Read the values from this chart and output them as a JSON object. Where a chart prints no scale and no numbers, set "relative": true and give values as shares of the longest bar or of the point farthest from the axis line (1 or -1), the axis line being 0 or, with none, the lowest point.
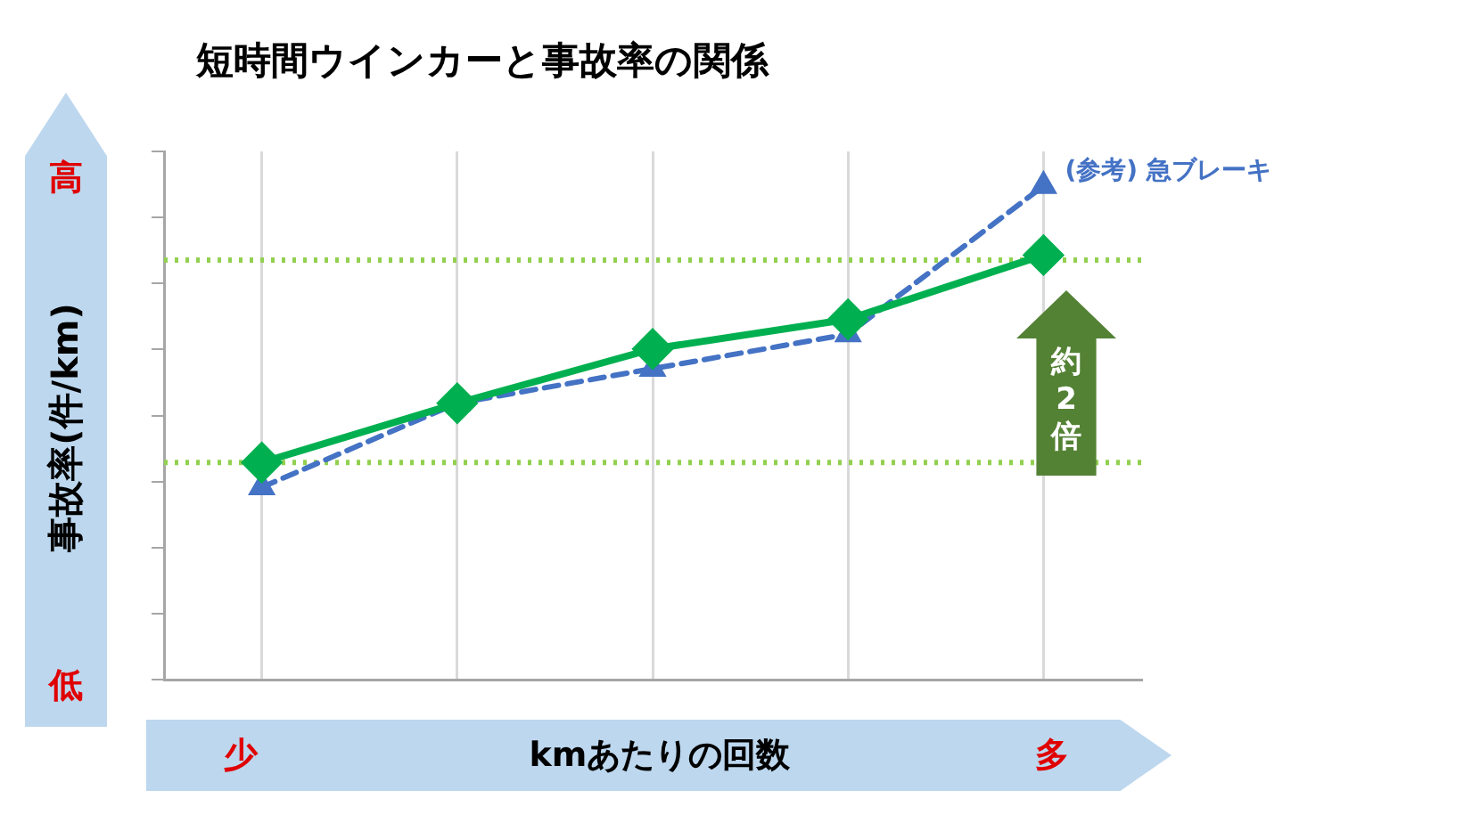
{
  "chart_data": {
    "type": "line",
    "title": "短時間ウインカーと事故率の関係",
    "xlabel": "kmあたりの回数",
    "ylabel": "事故率(件/km)",
    "relative": true,
    "categories": [
      null,
      null,
      null,
      null,
      null
    ],
    "series": [
      {
        "color": "#00b050",
        "values": [
          0.44,
          0.56,
          0.67,
          0.73,
          0.86
        ],
        "marker": "diamond",
        "line_style": "solid"
      },
      {
        "name": "(参考) 急ブレーキ",
        "color": "#4472c4",
        "values": [
          0.39,
          0.56,
          0.63,
          0.7,
          1
        ],
        "marker": "triangle",
        "line_style": "dashed"
      }
    ],
    "ref_lines": [
      {
        "axis": "y",
        "value": 0.85,
        "color": "#92d050",
        "line_style": "dotted"
      },
      {
        "axis": "y",
        "value": 0.44,
        "color": "#92d050",
        "line_style": "dotted"
      }
    ],
    "annotations": [
      "高",
      "低",
      "少",
      "多",
      "約2倍"
    ],
    "grid": "x",
    "legend": false
  }
}
